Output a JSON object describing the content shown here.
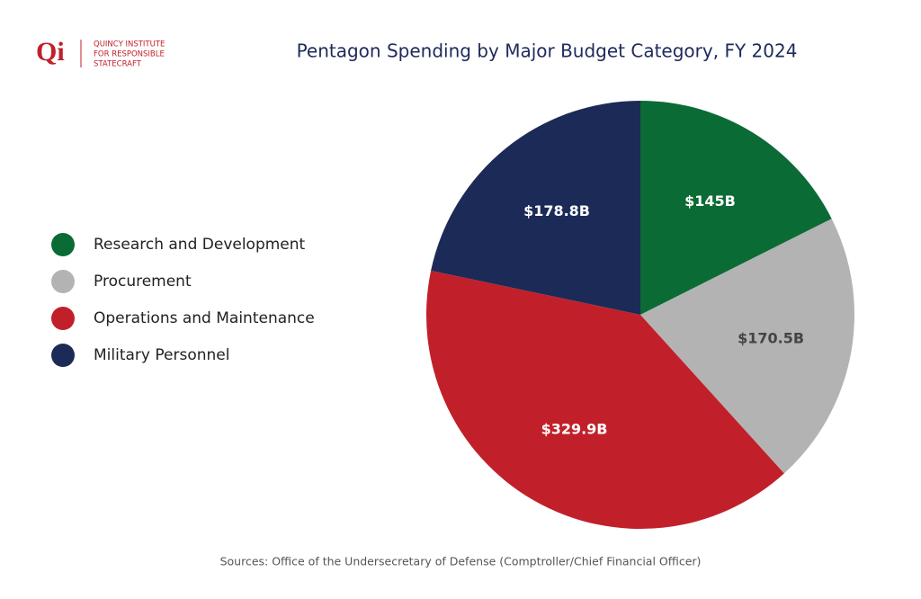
{
  "logo": {
    "mark": "Qi",
    "lines": [
      "QUINCY INSTITUTE",
      "FOR RESPONSIBLE",
      "STATECRAFT"
    ]
  },
  "chart_data": {
    "type": "pie",
    "title": "Pentagon Spending by Major Budget Category, FY 2024",
    "categories": [
      "Research and Development",
      "Procurement",
      "Operations and Maintenance",
      "Military Personnel"
    ],
    "values": [
      145,
      170.5,
      329.9,
      178.8
    ],
    "value_labels": [
      "$145B",
      "$170.5B",
      "$329.9B",
      "$178.8B"
    ],
    "colors": [
      "#0b6b35",
      "#b3b3b3",
      "#c1202a",
      "#1c2a57"
    ],
    "label_colors": [
      "#ffffff",
      "#444444",
      "#ffffff",
      "#ffffff"
    ],
    "legend": "left",
    "source": "Sources: Office of the Undersecretary of Defense (Comptroller/Chief Financial Officer)"
  }
}
